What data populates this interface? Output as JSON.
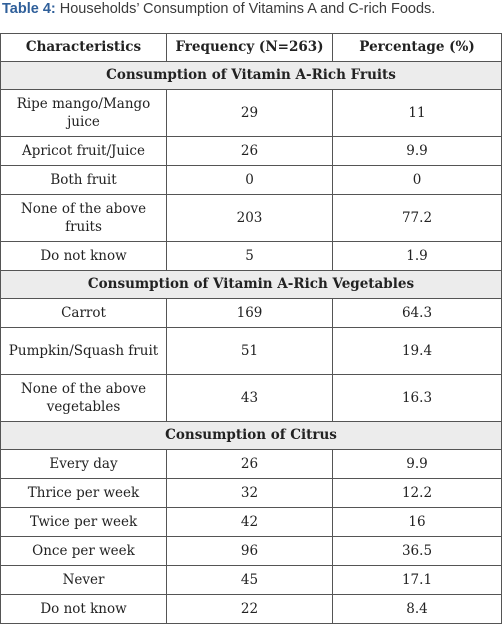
{
  "caption": {
    "label": "Table 4:",
    "text": " Households’ Consumption of Vitamins A and C-rich Foods."
  },
  "table": {
    "headers": [
      "Characteristics",
      "Frequency (N=263)",
      "Percentage (%)"
    ],
    "sections": [
      {
        "title": "Consumption of Vitamin A-Rich Fruits",
        "rows": [
          {
            "characteristic": "Ripe mango/Mango juice",
            "frequency": "29",
            "percentage": "11"
          },
          {
            "characteristic": "Apricot fruit/Juice",
            "frequency": "26",
            "percentage": "9.9"
          },
          {
            "characteristic": "Both fruit",
            "frequency": "0",
            "percentage": "0"
          },
          {
            "characteristic": "None of the above fruits",
            "frequency": "203",
            "percentage": "77.2"
          },
          {
            "characteristic": "Do not know",
            "frequency": "5",
            "percentage": "1.9"
          }
        ]
      },
      {
        "title": "Consumption of Vitamin A-Rich Vegetables",
        "rows": [
          {
            "characteristic": "Carrot",
            "frequency": "169",
            "percentage": "64.3"
          },
          {
            "characteristic": "Pumpkin/Squash fruit",
            "frequency": "51",
            "percentage": "19.4"
          },
          {
            "characteristic": "None of the above vegetables",
            "frequency": "43",
            "percentage": "16.3"
          }
        ]
      },
      {
        "title": "Consumption of Citrus",
        "rows": [
          {
            "characteristic": "Every day",
            "frequency": "26",
            "percentage": "9.9"
          },
          {
            "characteristic": "Thrice per week",
            "frequency": "32",
            "percentage": "12.2"
          },
          {
            "characteristic": "Twice per week",
            "frequency": "42",
            "percentage": "16"
          },
          {
            "characteristic": "Once per week",
            "frequency": "96",
            "percentage": "36.5"
          },
          {
            "characteristic": "Never",
            "frequency": "45",
            "percentage": "17.1"
          },
          {
            "characteristic": "Do not know",
            "frequency": "22",
            "percentage": "8.4"
          }
        ]
      }
    ]
  }
}
